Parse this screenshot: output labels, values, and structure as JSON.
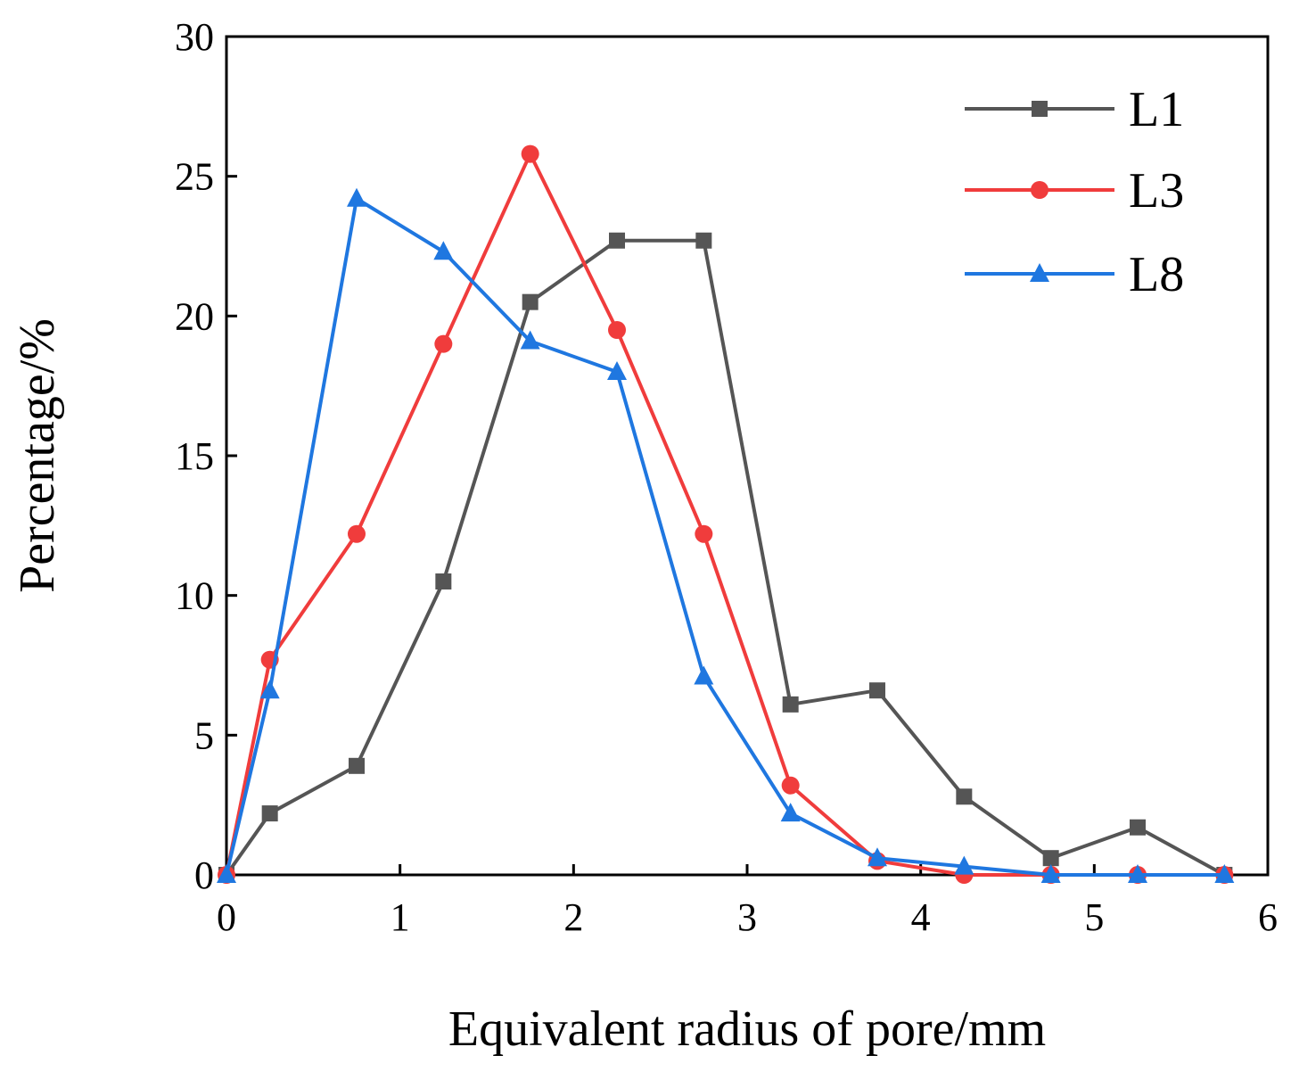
{
  "chart_data": {
    "type": "line",
    "title": "",
    "xlabel": "Equivalent radius of pore/mm",
    "ylabel": "Percentage/%",
    "xlim": [
      0,
      6
    ],
    "ylim": [
      0,
      30
    ],
    "xticks": [
      0,
      1,
      2,
      3,
      4,
      5,
      6
    ],
    "yticks": [
      0,
      5,
      10,
      15,
      20,
      25,
      30
    ],
    "grid": false,
    "legend_position": "top-right",
    "series": [
      {
        "name": "L1",
        "color": "#555555",
        "marker": "square",
        "x": [
          0,
          0.25,
          0.75,
          1.25,
          1.75,
          2.25,
          2.75,
          3.25,
          3.75,
          4.25,
          4.75,
          5.25,
          5.75
        ],
        "values": [
          0,
          2.2,
          3.9,
          10.5,
          20.5,
          22.7,
          22.7,
          6.1,
          6.6,
          2.8,
          0.6,
          1.7,
          0
        ]
      },
      {
        "name": "L3",
        "color": "#f03c3c",
        "marker": "circle",
        "x": [
          0,
          0.25,
          0.75,
          1.25,
          1.75,
          2.25,
          2.75,
          3.25,
          3.75,
          4.25,
          4.75,
          5.25,
          5.75
        ],
        "values": [
          0,
          7.7,
          12.2,
          19.0,
          25.8,
          19.5,
          12.2,
          3.2,
          0.5,
          0,
          0,
          0,
          0
        ]
      },
      {
        "name": "L8",
        "color": "#1f77e0",
        "marker": "triangle",
        "x": [
          0,
          0.25,
          0.75,
          1.25,
          1.75,
          2.25,
          2.75,
          3.25,
          3.75,
          4.25,
          4.75,
          5.25,
          5.75
        ],
        "values": [
          0,
          6.6,
          24.2,
          22.3,
          19.1,
          18.0,
          7.1,
          2.2,
          0.6,
          0.3,
          0,
          0,
          0
        ]
      }
    ]
  }
}
